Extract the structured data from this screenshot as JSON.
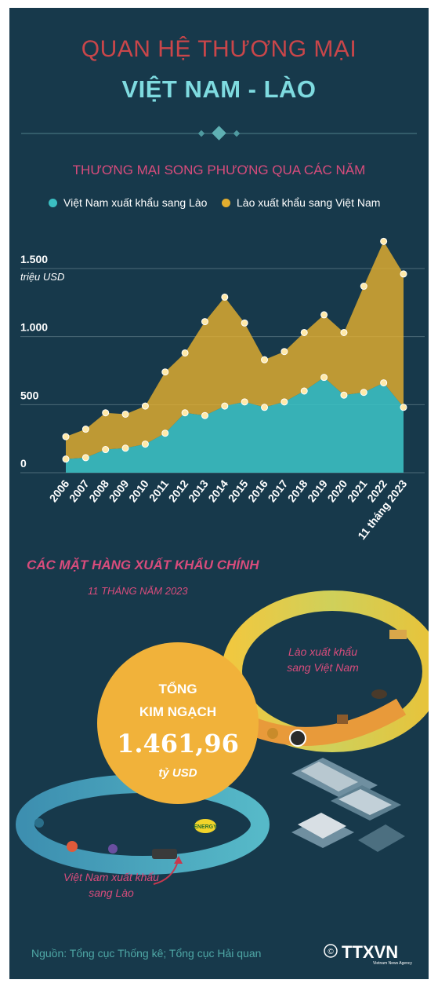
{
  "header": {
    "title_line1": "QUAN HỆ THƯƠNG MẠI",
    "title_line2": "VIỆT NAM - LÀO"
  },
  "section1": {
    "title": "THƯƠNG MẠI SONG PHƯƠNG QUA CÁC NĂM"
  },
  "chart_data": {
    "type": "area",
    "title": "THƯƠNG MẠI SONG PHƯƠNG QUA CÁC NĂM",
    "ylabel": "triệu USD",
    "ylim": [
      0,
      1800
    ],
    "yticks": [
      0,
      500,
      1000,
      1500
    ],
    "ytick_labels": [
      "0",
      "500",
      "1.000",
      "1.500"
    ],
    "grid": true,
    "legend_placement": "top",
    "stacked": true,
    "categories": [
      "2006",
      "2007",
      "2008",
      "2009",
      "2010",
      "2011",
      "2012",
      "2013",
      "2014",
      "2015",
      "2016",
      "2017",
      "2018",
      "2019",
      "2020",
      "2021",
      "2022",
      "11 tháng 2023"
    ],
    "series": [
      {
        "name": "Việt Nam xuất khẩu sang Lào",
        "color": "#3bbfc2",
        "values": [
          100,
          110,
          170,
          180,
          210,
          290,
          440,
          420,
          490,
          520,
          480,
          520,
          600,
          700,
          570,
          590,
          660,
          480
        ]
      },
      {
        "name": "Lào xuất khẩu sang Việt Nam",
        "color": "#e3ae2f",
        "values": [
          165,
          210,
          270,
          250,
          280,
          450,
          440,
          690,
          800,
          580,
          350,
          370,
          430,
          460,
          460,
          780,
          1040,
          980
        ]
      }
    ]
  },
  "section2": {
    "title": "CÁC MẶT HÀNG XUẤT KHẨU CHÍNH",
    "subtitle": "11 THÁNG NĂM 2023",
    "label_laos_to_vn": [
      "Lào xuất khẩu",
      "sang Việt Nam"
    ],
    "label_vn_to_laos": [
      "Việt Nam xuất khẩu",
      "sang Lào"
    ],
    "total_label_line1": "TỔNG",
    "total_label_line2": "KIM NGẠCH",
    "total_value": "1.461,96",
    "total_unit": "tỷ USD",
    "energy_badge": "ENERGY"
  },
  "footer": {
    "source": "Nguồn: Tổng cục Thống kê; Tổng cục Hải quan",
    "copyright_symbol": "©",
    "logo_text": "TTXVN",
    "logo_subtext": "Vietnam News Agency"
  },
  "colors": {
    "background": "#17394b",
    "title_red": "#c9464a",
    "title_cyan": "#7fdbe0",
    "section_pink": "#d84c7c",
    "vn_series": "#3bbfc2",
    "laos_series": "#e3ae2f",
    "total_circle": "#f1b23a"
  }
}
